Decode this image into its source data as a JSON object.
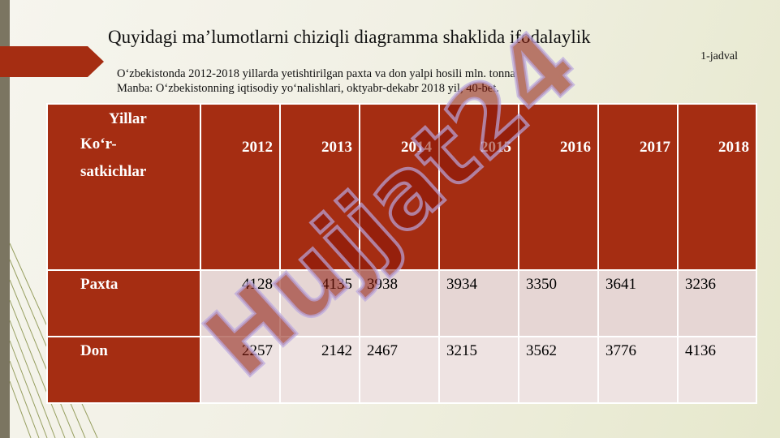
{
  "slide": {
    "title": "Quyidagi ma’lumotlarni chiziqli diagramma shaklida ifodalaylik",
    "table_number": "1-jadval",
    "subtitle_line1": "O‘zbekistonda 2012-2018 yillarda yetishtirilgan paxta va don yalpi hosili mln. tonna",
    "subtitle_line2": "Manba: O‘zbekistonning iqtisodiy yo‘nalishlari, oktyabr-dekabr 2018 yil, 40-bet.",
    "watermark": "Hujjat24"
  },
  "table": {
    "corner_top": "Yillar",
    "corner_bottom_1": "Ko‘r-",
    "corner_bottom_2": "satkichlar",
    "years": [
      "2012",
      "2013",
      "2014",
      "2015",
      "2016",
      "2017",
      "2018"
    ],
    "rows": [
      {
        "label": "Paxta",
        "values": [
          "4128",
          "4135",
          "3938",
          "3934",
          "3350",
          "3641",
          "3236"
        ]
      },
      {
        "label": "Don",
        "values": [
          "2257",
          "2142",
          "2467",
          "3215",
          "3562",
          "3776",
          "4136"
        ]
      }
    ]
  },
  "colors": {
    "header_bg": "#a52d12",
    "row1_bg": "#e6d6d4",
    "row2_bg": "#eee3e2",
    "watermark_text": "#8a1608",
    "watermark_outline": "#b9a6de"
  }
}
